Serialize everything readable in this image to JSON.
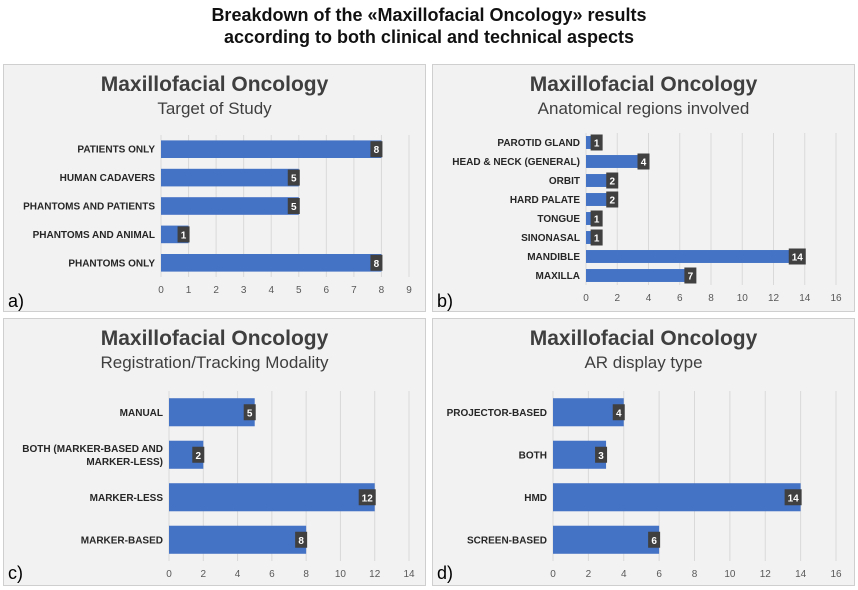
{
  "figure_title_line1": "Breakdown of the «Maxillofacial Oncology» results",
  "figure_title_line2": "according to both clinical and technical aspects",
  "colors": {
    "bar": "#4472c4",
    "label_bg": "#404040",
    "grid": "#d9d9d9",
    "panel_bg": "#f2f2f2"
  },
  "chart_data": [
    {
      "type": "bar",
      "orientation": "horizontal",
      "panel_label": "a)",
      "title": "Maxillofacial Oncology",
      "subtitle": "Target of Study",
      "categories": [
        "PATIENTS ONLY",
        "HUMAN CADAVERS",
        "PHANTOMS AND PATIENTS",
        "PHANTOMS AND ANIMAL",
        "PHANTOMS ONLY"
      ],
      "values": [
        8,
        5,
        5,
        1,
        8
      ],
      "xlim": [
        0,
        9
      ],
      "ticks": [
        0,
        1,
        2,
        3,
        4,
        5,
        6,
        7,
        8,
        9
      ],
      "grid": true
    },
    {
      "type": "bar",
      "orientation": "horizontal",
      "panel_label": "b)",
      "title": "Maxillofacial Oncology",
      "subtitle": "Anatomical regions involved",
      "categories": [
        "PAROTID GLAND",
        "HEAD & NECK (GENERAL)",
        "ORBIT",
        "HARD PALATE",
        "TONGUE",
        "SINONASAL",
        "MANDIBLE",
        "MAXILLA"
      ],
      "values": [
        1,
        4,
        2,
        2,
        1,
        1,
        14,
        7
      ],
      "xlim": [
        0,
        16
      ],
      "ticks": [
        0,
        2,
        4,
        6,
        8,
        10,
        12,
        14,
        16
      ],
      "grid": true
    },
    {
      "type": "bar",
      "orientation": "horizontal",
      "panel_label": "c)",
      "title": "Maxillofacial Oncology",
      "subtitle": "Registration/Tracking Modality",
      "categories": [
        "MANUAL",
        [
          "BOTH (MARKER-BASED AND",
          "MARKER-LESS)"
        ],
        "MARKER-LESS",
        "MARKER-BASED"
      ],
      "values": [
        5,
        2,
        12,
        8
      ],
      "xlim": [
        0,
        14
      ],
      "ticks": [
        0,
        2,
        4,
        6,
        8,
        10,
        12,
        14
      ],
      "grid": true
    },
    {
      "type": "bar",
      "orientation": "horizontal",
      "panel_label": "d)",
      "title": "Maxillofacial Oncology",
      "subtitle": "AR display type",
      "categories": [
        "PROJECTOR-BASED",
        "BOTH",
        "HMD",
        "SCREEN-BASED"
      ],
      "values": [
        4,
        3,
        14,
        6
      ],
      "xlim": [
        0,
        16
      ],
      "ticks": [
        0,
        2,
        4,
        6,
        8,
        10,
        12,
        14,
        16
      ],
      "grid": true
    }
  ]
}
